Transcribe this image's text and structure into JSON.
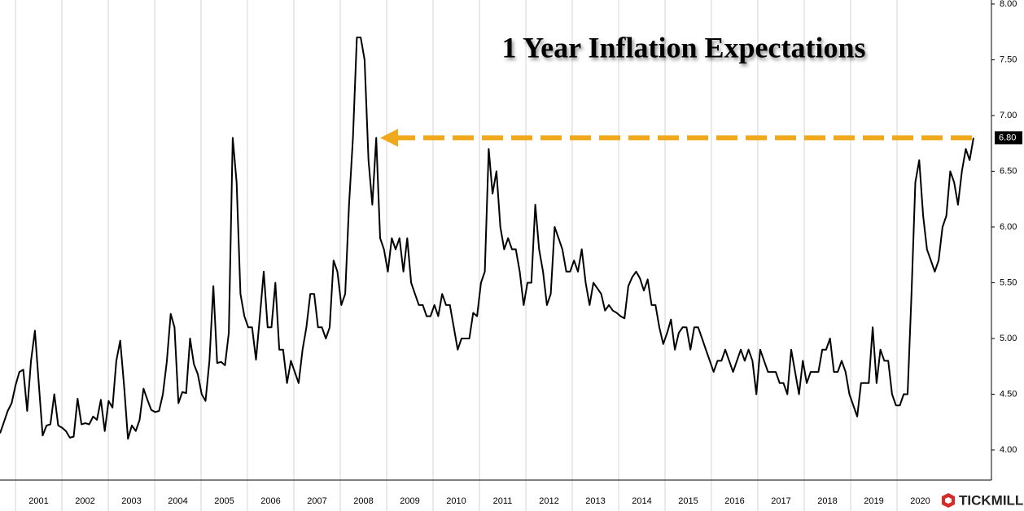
{
  "chart_data": {
    "type": "line",
    "title": "1 Year Inflation Expectations",
    "series": [
      {
        "color": "#000000",
        "values": [
          4.15,
          4.25,
          4.35,
          4.42,
          4.58,
          4.7,
          4.72,
          4.35,
          4.8,
          5.07,
          4.6,
          4.13,
          4.22,
          4.23,
          4.5,
          4.22,
          4.2,
          4.17,
          4.11,
          4.12,
          4.46,
          4.23,
          4.24,
          4.23,
          4.3,
          4.27,
          4.45,
          4.17,
          4.44,
          4.38,
          4.8,
          4.98,
          4.57,
          4.1,
          4.22,
          4.17,
          4.27,
          4.55,
          4.45,
          4.36,
          4.34,
          4.35,
          4.5,
          4.79,
          5.22,
          5.1,
          4.42,
          4.52,
          4.51,
          5.0,
          4.77,
          4.68,
          4.5,
          4.44,
          4.8,
          5.47,
          4.78,
          4.79,
          4.76,
          5.05,
          6.8,
          6.4,
          5.4,
          5.2,
          5.1,
          5.1,
          4.81,
          5.2,
          5.6,
          5.1,
          5.1,
          5.5,
          4.9,
          4.9,
          4.6,
          4.8,
          4.7,
          4.6,
          4.9,
          5.1,
          5.4,
          5.4,
          5.1,
          5.1,
          5.0,
          5.1,
          5.7,
          5.6,
          5.3,
          5.4,
          6.2,
          6.8,
          7.7,
          7.7,
          7.5,
          6.6,
          6.2,
          6.8,
          5.9,
          5.8,
          5.6,
          5.9,
          5.8,
          5.9,
          5.6,
          5.9,
          5.5,
          5.4,
          5.3,
          5.3,
          5.2,
          5.2,
          5.3,
          5.2,
          5.4,
          5.3,
          5.3,
          5.1,
          4.9,
          5.0,
          5.0,
          5.0,
          5.23,
          5.2,
          5.5,
          5.6,
          6.7,
          6.3,
          6.5,
          6.0,
          5.8,
          5.9,
          5.8,
          5.8,
          5.6,
          5.3,
          5.5,
          5.5,
          6.2,
          5.8,
          5.6,
          5.3,
          5.4,
          6.0,
          5.9,
          5.8,
          5.6,
          5.6,
          5.7,
          5.6,
          5.8,
          5.5,
          5.3,
          5.5,
          5.45,
          5.4,
          5.25,
          5.3,
          5.25,
          5.23,
          5.2,
          5.18,
          5.47,
          5.55,
          5.6,
          5.54,
          5.43,
          5.53,
          5.3,
          5.3,
          5.1,
          4.95,
          5.05,
          5.17,
          4.9,
          5.05,
          5.1,
          5.1,
          4.9,
          5.1,
          5.1,
          5.0,
          4.9,
          4.8,
          4.7,
          4.8,
          4.8,
          4.9,
          4.8,
          4.7,
          4.8,
          4.9,
          4.8,
          4.9,
          4.8,
          4.5,
          4.9,
          4.8,
          4.7,
          4.7,
          4.7,
          4.6,
          4.6,
          4.5,
          4.9,
          4.7,
          4.5,
          4.8,
          4.6,
          4.7,
          4.7,
          4.7,
          4.9,
          4.9,
          5.0,
          4.7,
          4.7,
          4.8,
          4.7,
          4.5,
          4.4,
          4.3,
          4.6,
          4.6,
          4.6,
          5.1,
          4.6,
          4.9,
          4.8,
          4.8,
          4.5,
          4.4,
          4.4,
          4.5,
          4.5,
          5.4,
          6.4,
          6.6,
          6.1,
          5.8,
          5.7,
          5.6,
          5.7,
          6.0,
          6.1,
          6.5,
          6.4,
          6.2,
          6.5,
          6.7,
          6.6,
          6.8
        ]
      }
    ],
    "xlim": [
      2000.667,
      2022.035
    ],
    "xticks": [
      {
        "value": 2001,
        "label": "2001"
      },
      {
        "value": 2002,
        "label": "2002"
      },
      {
        "value": 2003,
        "label": "2003"
      },
      {
        "value": 2004,
        "label": "2004"
      },
      {
        "value": 2005,
        "label": "2005"
      },
      {
        "value": 2006,
        "label": "2006"
      },
      {
        "value": 2007,
        "label": "2007"
      },
      {
        "value": 2008,
        "label": "2008"
      },
      {
        "value": 2009,
        "label": "2009"
      },
      {
        "value": 2010,
        "label": "2010"
      },
      {
        "value": 2011,
        "label": "2011"
      },
      {
        "value": 2012,
        "label": "2012"
      },
      {
        "value": 2013,
        "label": "2013"
      },
      {
        "value": 2014,
        "label": "2014"
      },
      {
        "value": 2015,
        "label": "2015"
      },
      {
        "value": 2016,
        "label": "2016"
      },
      {
        "value": 2017,
        "label": "2017"
      },
      {
        "value": 2018,
        "label": "2018"
      },
      {
        "value": 2019,
        "label": "2019"
      },
      {
        "value": 2020,
        "label": "2020"
      }
    ],
    "ylim": [
      3.73,
      8.036
    ],
    "yticks": [
      {
        "value": 4,
        "label": "4.00"
      },
      {
        "value": 4.5,
        "label": "4.50"
      },
      {
        "value": 5,
        "label": "5.00"
      },
      {
        "value": 5.5,
        "label": "5.50"
      },
      {
        "value": 6,
        "label": "6.00"
      },
      {
        "value": 6.5,
        "label": "6.50"
      },
      {
        "value": 7,
        "label": "7.00"
      },
      {
        "value": 7.5,
        "label": "7.50"
      },
      {
        "value": 8,
        "label": "8.00"
      }
    ],
    "current_value": {
      "value": 6.8,
      "label": "6.80"
    },
    "arrow_color": "#f0a81c",
    "grid": true,
    "watermark": "TICKMILL"
  }
}
